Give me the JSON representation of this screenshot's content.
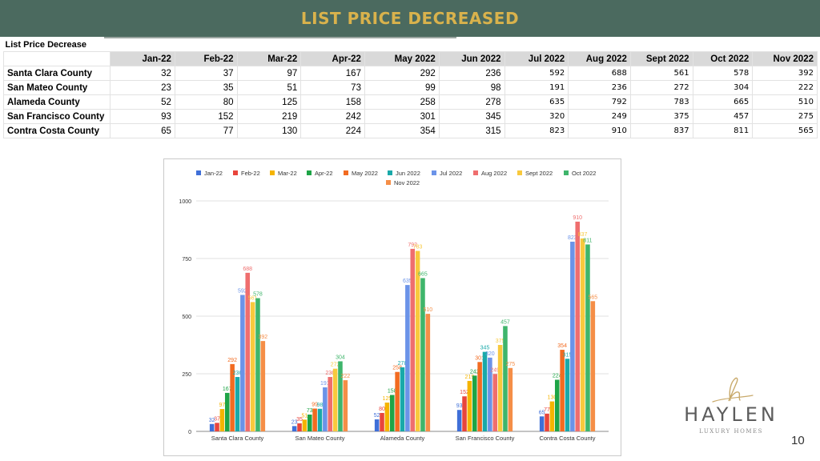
{
  "slide": {
    "title": "LIST PRICE DECREASED",
    "page_number": "10",
    "logo": {
      "name": "HAYLEN",
      "tagline": "LUXURY HOMES"
    },
    "colors": {
      "banner": "#4b6a5f",
      "title": "#d9b24c",
      "logo_gold": "#c8a96a"
    }
  },
  "table": {
    "caption": "List Price Decrease",
    "columns": [
      "Jan-22",
      "Feb-22",
      "Mar-22",
      "Apr-22",
      "May 2022",
      "Jun 2022",
      "Jul 2022",
      "Aug 2022",
      "Sept 2022",
      "Oct 2022",
      "Nov 2022"
    ],
    "rows": [
      {
        "county": "Santa Clara County",
        "values": [
          "32",
          "37",
          "97",
          "167",
          "292",
          "236",
          "592",
          "688",
          "561",
          "578",
          "392"
        ]
      },
      {
        "county": "San Mateo County",
        "values": [
          "23",
          "35",
          "51",
          "73",
          "99",
          "98",
          "191",
          "236",
          "272",
          "304",
          "222"
        ]
      },
      {
        "county": "Alameda County",
        "values": [
          "52",
          "80",
          "125",
          "158",
          "258",
          "278",
          "635",
          "792",
          "783",
          "665",
          "510"
        ]
      },
      {
        "county": "San Francisco County",
        "values": [
          "93",
          "152",
          "219",
          "242",
          "301",
          "345",
          "320",
          "249",
          "375",
          "457",
          "275"
        ]
      },
      {
        "county": "Contra Costa County",
        "values": [
          "65",
          "77",
          "130",
          "224",
          "354",
          "315",
          "823",
          "910",
          "837",
          "811",
          "565"
        ]
      }
    ]
  },
  "chart_data": {
    "type": "bar",
    "title": "",
    "xlabel": "",
    "ylabel": "",
    "ylim": [
      0,
      1000
    ],
    "yticks": [
      0,
      250,
      500,
      750,
      1000
    ],
    "legend_position": "top",
    "categories": [
      "Santa Clara County",
      "San Mateo County",
      "Alameda County",
      "San Francisco County",
      "Contra Costa County"
    ],
    "series": [
      {
        "name": "Jan-22",
        "color": "#3f6fd8",
        "values": [
          32,
          23,
          52,
          93,
          65
        ]
      },
      {
        "name": "Feb-22",
        "color": "#e8453c",
        "values": [
          37,
          35,
          80,
          152,
          77
        ]
      },
      {
        "name": "Mar-22",
        "color": "#f5b400",
        "values": [
          97,
          51,
          125,
          219,
          130
        ]
      },
      {
        "name": "Apr-22",
        "color": "#1ea446",
        "values": [
          167,
          73,
          158,
          242,
          224
        ]
      },
      {
        "name": "May 2022",
        "color": "#f26b21",
        "values": [
          292,
          99,
          258,
          301,
          354
        ]
      },
      {
        "name": "Jun 2022",
        "color": "#19a9a9",
        "values": [
          236,
          98,
          278,
          345,
          315
        ]
      },
      {
        "name": "Jul 2022",
        "color": "#6b93e8",
        "values": [
          592,
          191,
          635,
          320,
          823
        ]
      },
      {
        "name": "Aug 2022",
        "color": "#ef6e6e",
        "values": [
          688,
          236,
          792,
          249,
          910
        ]
      },
      {
        "name": "Sept 2022",
        "color": "#f8c93d",
        "values": [
          561,
          272,
          783,
          375,
          837
        ]
      },
      {
        "name": "Oct 2022",
        "color": "#3fb56b",
        "values": [
          578,
          304,
          665,
          457,
          811
        ]
      },
      {
        "name": "Nov 2022",
        "color": "#f58e47",
        "values": [
          392,
          222,
          510,
          275,
          565
        ]
      }
    ]
  }
}
